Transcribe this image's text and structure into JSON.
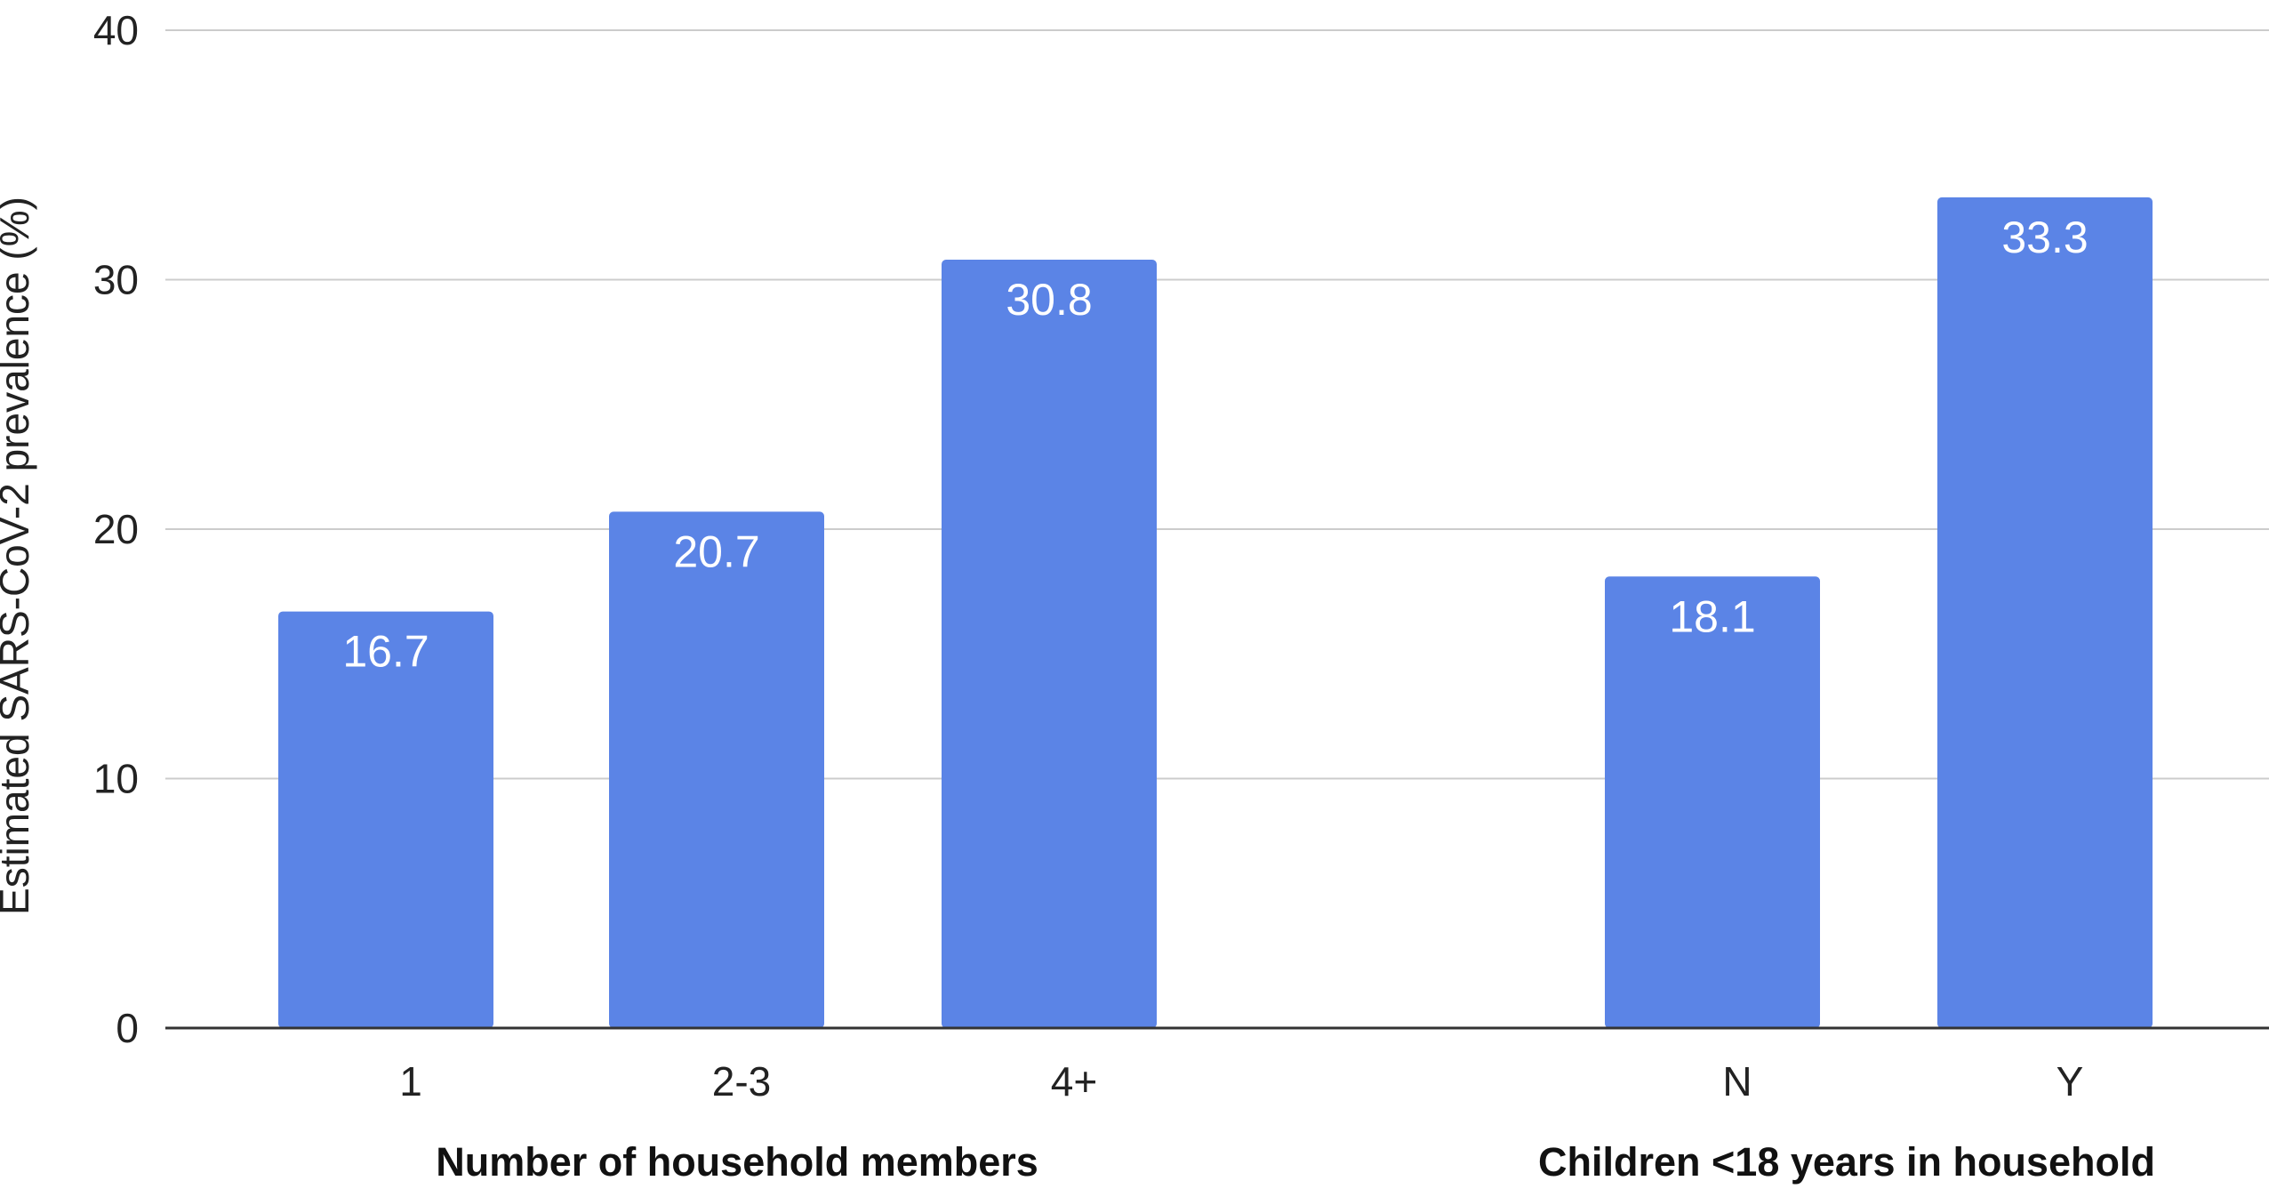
{
  "chart_data": {
    "type": "bar",
    "title": "",
    "ylabel": "Estimated SARS-CoV-2 prevalence (%)",
    "ylim": [
      0,
      40
    ],
    "yticks": [
      0,
      10,
      20,
      30,
      40
    ],
    "grid": true,
    "bar_color": "#5b84e6",
    "groups": [
      {
        "label": "Number of household members",
        "categories": [
          "1",
          "2-3",
          "4+"
        ],
        "values": [
          16.7,
          20.7,
          30.8
        ]
      },
      {
        "label": "Children <18 years in household",
        "categories": [
          "N",
          "Y"
        ],
        "values": [
          18.1,
          33.3
        ]
      }
    ]
  }
}
